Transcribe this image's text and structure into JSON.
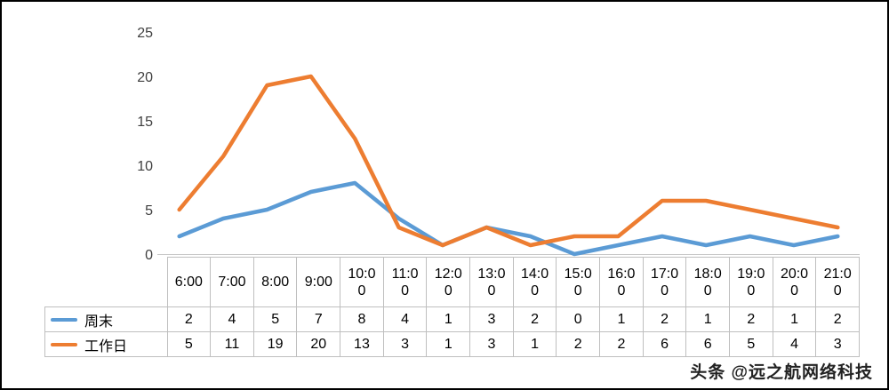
{
  "chart_data": {
    "type": "line",
    "title": "",
    "xlabel": "",
    "ylabel": "",
    "categories": [
      "6:00",
      "7:00",
      "8:00",
      "9:00",
      "10:00",
      "11:00",
      "12:00",
      "13:00",
      "14:00",
      "15:00",
      "16:00",
      "17:00",
      "18:00",
      "19:00",
      "20:00",
      "21:00"
    ],
    "series": [
      {
        "name": "周末",
        "color": "#5B9BD5",
        "values": [
          2,
          4,
          5,
          7,
          8,
          4,
          1,
          3,
          2,
          0,
          1,
          2,
          1,
          2,
          1,
          2
        ]
      },
      {
        "name": "工作日",
        "color": "#ED7D31",
        "values": [
          5,
          11,
          19,
          20,
          13,
          3,
          1,
          3,
          1,
          2,
          2,
          6,
          6,
          5,
          4,
          3
        ]
      }
    ],
    "ylim": [
      0,
      25
    ],
    "yticks": [
      0,
      5,
      10,
      15,
      20,
      25
    ],
    "grid": false,
    "legend_position": "data-table-left",
    "axis_line_color": "#c8c8c8"
  },
  "watermark": "头条 @远之航网络科技"
}
